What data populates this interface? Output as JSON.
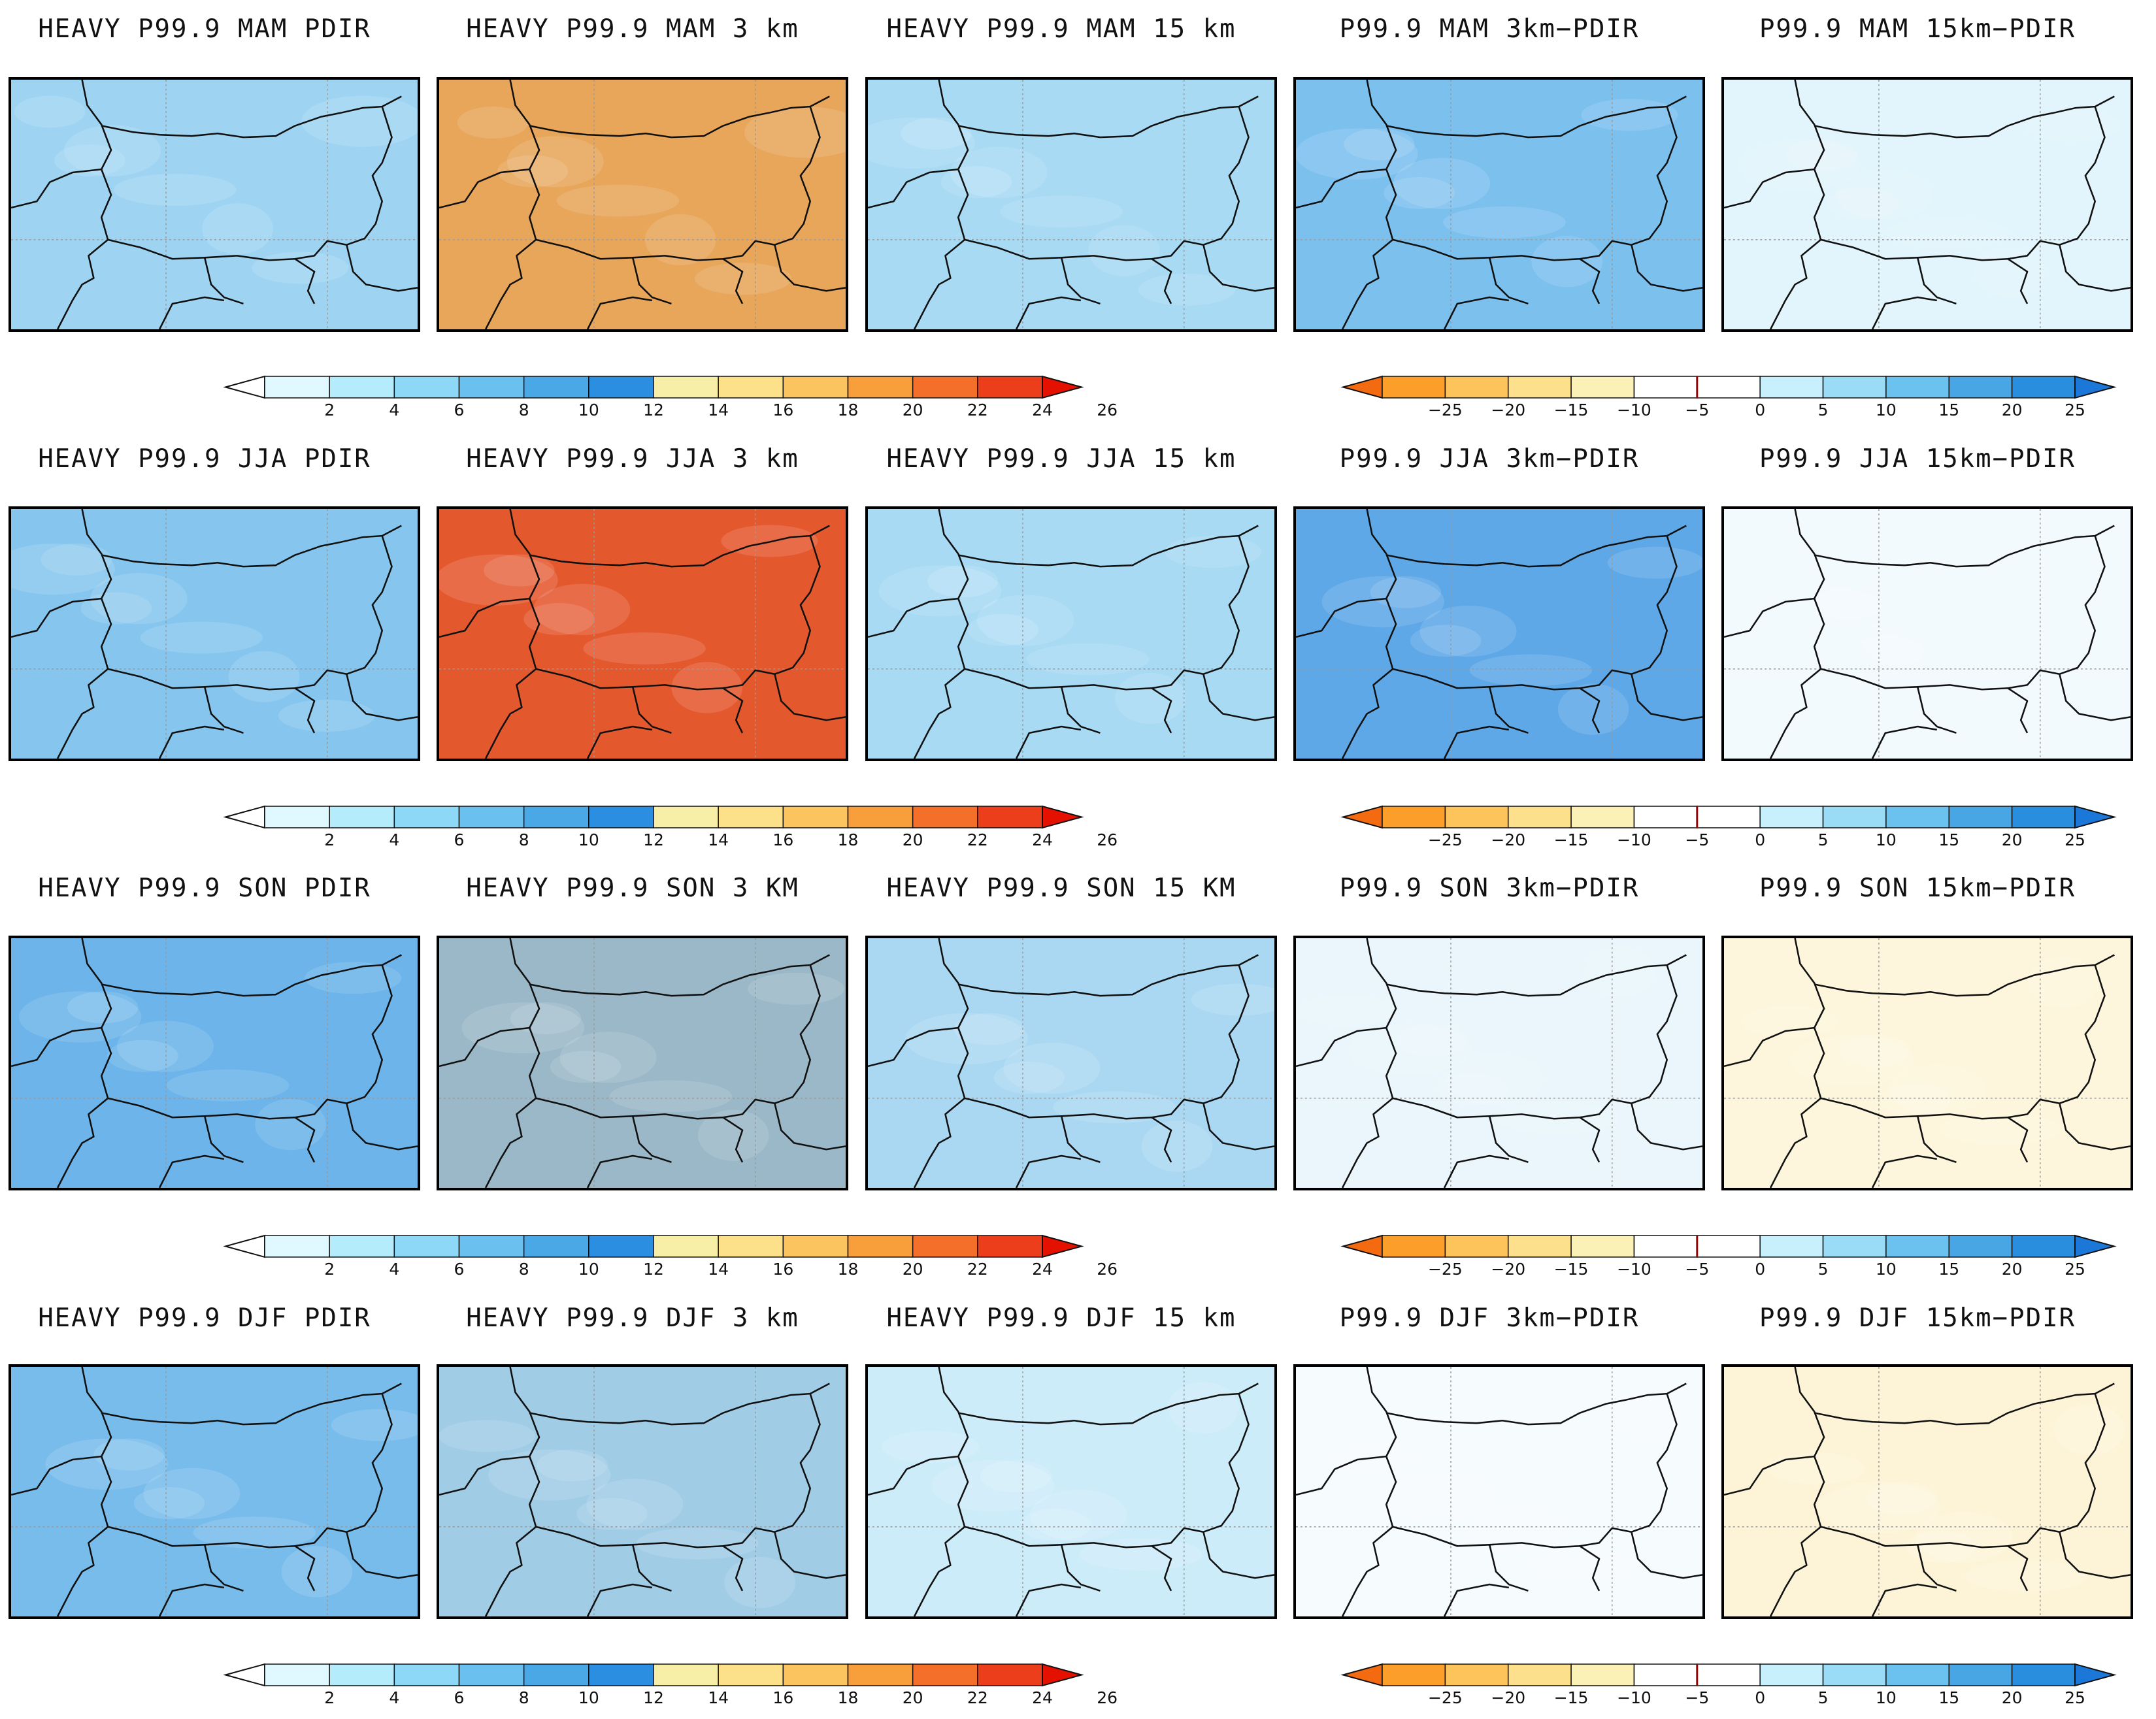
{
  "figure": {
    "rows": [
      {
        "season": "MAM",
        "titles": [
          "HEAVY P99.9 MAM PDIR",
          "HEAVY P99.9 MAM 3 km",
          "HEAVY P99.9 MAM 15 km",
          "P99.9 MAM 3km−PDIR",
          "P99.9 MAM 15km−PDIR"
        ]
      },
      {
        "season": "JJA",
        "titles": [
          "HEAVY P99.9 JJA PDIR",
          "HEAVY P99.9 JJA 3 km",
          "HEAVY P99.9 JJA 15 km",
          "P99.9 JJA 3km−PDIR",
          "P99.9 JJA 15km−PDIR"
        ]
      },
      {
        "season": "SON",
        "titles": [
          "HEAVY P99.9 SON PDIR",
          "HEAVY P99.9 SON 3 KM",
          "HEAVY P99.9 SON 15 KM",
          "P99.9 SON 3km−PDIR",
          "P99.9 SON 15km−PDIR"
        ]
      },
      {
        "season": "DJF",
        "titles": [
          "HEAVY P99.9 DJF PDIR",
          "HEAVY P99.9 DJF 3 km",
          "HEAVY P99.9 DJF 15 km",
          "P99.9 DJF 3km−PDIR",
          "P99.9 DJF 15km−PDIR"
        ]
      }
    ]
  },
  "colorbars": {
    "absolute": {
      "ticks": [
        "2",
        "4",
        "6",
        "8",
        "10",
        "12",
        "14",
        "16",
        "18",
        "20",
        "22",
        "24",
        "26"
      ],
      "colors": [
        "#ffffff",
        "#e0f8ff",
        "#b4ecfb",
        "#8cd8f6",
        "#6ac0ef",
        "#4aa8e6",
        "#2c8ee0",
        "#f7eea8",
        "#fce08a",
        "#fbc45e",
        "#f89e3a",
        "#f4702a",
        "#ec3e1a",
        "#e41000"
      ]
    },
    "difference": {
      "ticks": [
        "−25",
        "−20",
        "−15",
        "−10",
        "−5",
        "0",
        "5",
        "10",
        "15",
        "20",
        "25"
      ],
      "colors": [
        "#f46a10",
        "#fb9e2a",
        "#fcc45a",
        "#fce08c",
        "#fbf0b6",
        "#ffffff",
        "#ffffff",
        "#c8f0fc",
        "#9adcf6",
        "#6cc2ee",
        "#48a6e4",
        "#2a8ede",
        "#1c78d8"
      ],
      "zero_line_color": "#a00000"
    }
  },
  "fields": {
    "rows": [
      [
        "#9ed4f2",
        "#e8a65a",
        "#a8daf4",
        "#7cc0ee",
        "#e2f4fc"
      ],
      [
        "#86c6ee",
        "#e4582e",
        "#a8daf4",
        "#5ea8e8",
        "#f2fafe"
      ],
      [
        "#6cb4ea",
        "#9ab8c8",
        "#aad8f2",
        "#eaf6fc",
        "#fdf6dc"
      ],
      [
        "#78bcec",
        "#a0cce6",
        "#cdecfa",
        "#f6fbfe",
        "#fdf4d8"
      ]
    ]
  }
}
